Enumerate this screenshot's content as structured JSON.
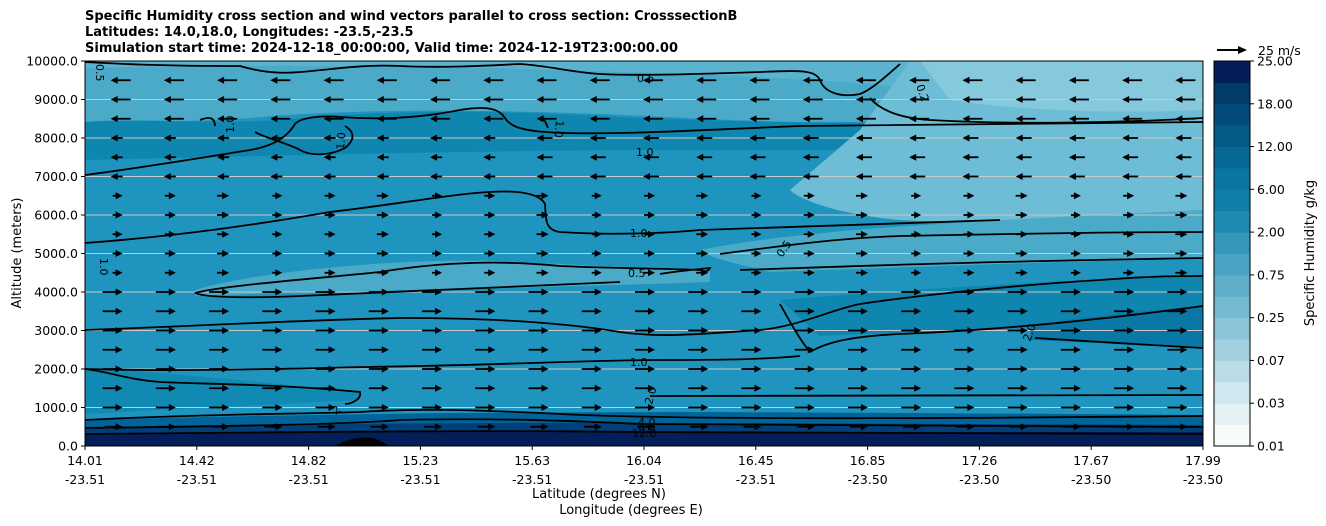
{
  "chart_data": {
    "type": "contour",
    "title_lines": [
      "Specific Humidity cross section and wind vectors parallel to cross section: CrosssectionB",
      "Latitudes: 14.0,18.0, Longitudes: -23.5,-23.5",
      "Simulation start time: 2024-12-18_00:00:00, Valid time: 2024-12-19T23:00:00.00"
    ],
    "ylabel": "Altitude (meters)",
    "xlabel_lat": "Latitude (degrees N)",
    "xlabel_lon": "Longitude (degrees E)",
    "ylim": [
      0,
      10000
    ],
    "yticks": [
      "0.0",
      "1000.0",
      "2000.0",
      "3000.0",
      "4000.0",
      "5000.0",
      "6000.0",
      "7000.0",
      "8000.0",
      "9000.0",
      "10000.0"
    ],
    "xticks": [
      {
        "lat": "14.01",
        "lon": "-23.51"
      },
      {
        "lat": "14.42",
        "lon": "-23.51"
      },
      {
        "lat": "14.82",
        "lon": "-23.51"
      },
      {
        "lat": "15.23",
        "lon": "-23.51"
      },
      {
        "lat": "15.63",
        "lon": "-23.51"
      },
      {
        "lat": "16.04",
        "lon": "-23.51"
      },
      {
        "lat": "16.45",
        "lon": "-23.51"
      },
      {
        "lat": "16.85",
        "lon": "-23.50"
      },
      {
        "lat": "17.26",
        "lon": "-23.50"
      },
      {
        "lat": "17.67",
        "lon": "-23.50"
      },
      {
        "lat": "17.99",
        "lon": "-23.50"
      }
    ],
    "grid": "horizontal",
    "colorbar": {
      "label": "Specific Humidity g/kg",
      "ticks": [
        "0.01",
        "0.03",
        "0.07",
        "0.25",
        "0.75",
        "2.00",
        "6.00",
        "12.00",
        "18.00",
        "25.00"
      ]
    },
    "quiver_key": "25 m/s",
    "contour_labels": [
      "0.5",
      "1.0",
      "1.0",
      "1.0",
      "0.5",
      "1.0",
      "0.5",
      "1.0",
      "2.0",
      "2.0",
      "1.0",
      "1.0",
      "4.0",
      "6.0",
      "12.0",
      "2",
      "0.5",
      "0.2"
    ],
    "wind_rows": [
      {
        "alt": 9500,
        "dir": "W"
      },
      {
        "alt": 9000,
        "dir": "W"
      },
      {
        "alt": 8500,
        "dir": "W"
      },
      {
        "alt": 8000,
        "dir": "W"
      },
      {
        "alt": 7500,
        "dir": "W"
      },
      {
        "alt": 7000,
        "dir": "W"
      },
      {
        "alt": 6500,
        "dir": "E"
      },
      {
        "alt": 6000,
        "dir": "E"
      },
      {
        "alt": 5500,
        "dir": "E"
      },
      {
        "alt": 5000,
        "dir": "E"
      },
      {
        "alt": 4500,
        "dir": "E"
      },
      {
        "alt": 4000,
        "dir": "E"
      },
      {
        "alt": 3500,
        "dir": "E"
      },
      {
        "alt": 3000,
        "dir": "E"
      },
      {
        "alt": 2500,
        "dir": "E"
      },
      {
        "alt": 2000,
        "dir": "E"
      },
      {
        "alt": 1500,
        "dir": "E"
      },
      {
        "alt": 1000,
        "dir": "E"
      },
      {
        "alt": 500,
        "dir": "E"
      }
    ]
  }
}
